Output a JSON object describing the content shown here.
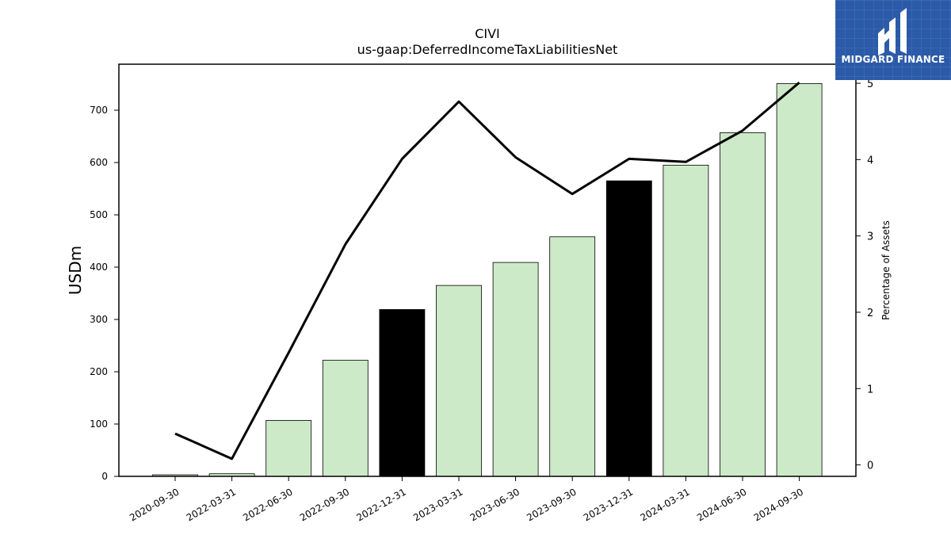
{
  "chart_data": {
    "type": "bar",
    "title": "CIVI",
    "subtitle": "us-gaap:DeferredIncomeTaxLiabilitiesNet",
    "ylabel": "USDm",
    "y2label": "Percentage of Assets",
    "categories": [
      "2020-09-30",
      "2022-03-31",
      "2022-06-30",
      "2022-09-30",
      "2022-12-31",
      "2023-03-31",
      "2023-06-30",
      "2023-09-30",
      "2023-12-31",
      "2024-03-31",
      "2024-06-30",
      "2024-09-30"
    ],
    "bar_values": [
      3,
      5,
      107,
      222,
      319,
      365,
      409,
      458,
      565,
      595,
      657,
      751
    ],
    "bar_highlight": [
      false,
      false,
      false,
      false,
      true,
      false,
      false,
      false,
      true,
      false,
      false,
      false
    ],
    "line_values": [
      0.41,
      0.08,
      1.47,
      2.89,
      4.01,
      4.76,
      4.03,
      3.55,
      4.01,
      3.97,
      4.38,
      5.01
    ],
    "ylim": [
      0,
      788
    ],
    "yticks": [
      0,
      100,
      200,
      300,
      400,
      500,
      600,
      700
    ],
    "y2lim": [
      -0.15,
      5.25
    ],
    "y2ticks": [
      0,
      1,
      2,
      3,
      4,
      5
    ],
    "bar_color": "#cdeac8",
    "highlight_color": "#000000",
    "line_color": "#000000",
    "grid": false,
    "legend": "none"
  },
  "logo": {
    "text": "MIDGARD FINANCE",
    "color": "#2b5aa8"
  }
}
